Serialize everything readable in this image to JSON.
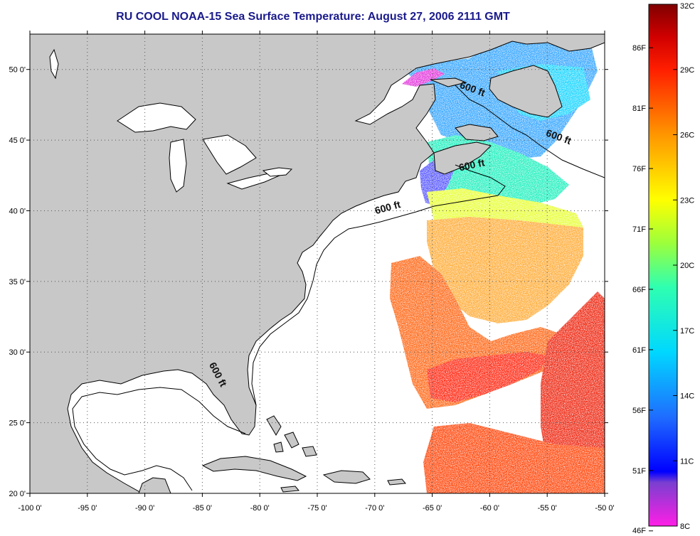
{
  "title": "RU COOL  NOAA-15  Sea Surface Temperature:  August 27, 2006 2111 GMT",
  "map": {
    "lon_range": [
      -100,
      -50
    ],
    "lat_range": [
      20,
      52.5
    ],
    "lon_ticks": [
      {
        "value": -100,
        "label": "-100 0'"
      },
      {
        "value": -95,
        "label": "-95 0'"
      },
      {
        "value": -90,
        "label": "-90 0'"
      },
      {
        "value": -85,
        "label": "-85 0'"
      },
      {
        "value": -80,
        "label": "-80 0'"
      },
      {
        "value": -75,
        "label": "-75 0'"
      },
      {
        "value": -70,
        "label": "-70 0'"
      },
      {
        "value": -65,
        "label": "-65 0'"
      },
      {
        "value": -60,
        "label": "-60 0'"
      },
      {
        "value": -55,
        "label": "-55 0'"
      },
      {
        "value": -50,
        "label": "-50 0'"
      }
    ],
    "lat_ticks": [
      {
        "value": 20,
        "label": "20 0'"
      },
      {
        "value": 25,
        "label": "25 0'"
      },
      {
        "value": 30,
        "label": "30 0'"
      },
      {
        "value": 35,
        "label": "35 0'"
      },
      {
        "value": 40,
        "label": "40 0'"
      },
      {
        "value": 45,
        "label": "45 0'"
      },
      {
        "value": 50,
        "label": "50 0'"
      }
    ],
    "grid": "dotted",
    "contour_labels": [
      {
        "text": "600 ft",
        "lon": -61.6,
        "lat": 48.4,
        "rotate": 20
      },
      {
        "text": "600 ft",
        "lon": -61.5,
        "lat": 43.0,
        "rotate": -12
      },
      {
        "text": "600 ft",
        "lon": -54.1,
        "lat": 45.0,
        "rotate": 20
      },
      {
        "text": "600 ft",
        "lon": -68.8,
        "lat": 40.0,
        "rotate": -15
      },
      {
        "text": "600 ft",
        "lon": -83.9,
        "lat": 28.3,
        "rotate": 62
      }
    ],
    "colors": {
      "land": "#c8c8c8",
      "coast": "#000000",
      "ocean": "#ffffff"
    }
  },
  "colorbar": {
    "range_c": [
      8,
      32
    ],
    "celsius_ticks": [
      {
        "value": 32,
        "label": "32C"
      },
      {
        "value": 29,
        "label": "29C"
      },
      {
        "value": 26,
        "label": "26C"
      },
      {
        "value": 23,
        "label": "23C"
      },
      {
        "value": 20,
        "label": "20C"
      },
      {
        "value": 17,
        "label": "17C"
      },
      {
        "value": 14,
        "label": "14C"
      },
      {
        "value": 11,
        "label": "11C"
      },
      {
        "value": 8,
        "label": "8C"
      }
    ],
    "fahrenheit_ticks": [
      {
        "value": 86,
        "label": "86F"
      },
      {
        "value": 81,
        "label": "81F"
      },
      {
        "value": 76,
        "label": "76F"
      },
      {
        "value": 71,
        "label": "71F"
      },
      {
        "value": 66,
        "label": "66F"
      },
      {
        "value": 61,
        "label": "61F"
      },
      {
        "value": 56,
        "label": "56F"
      },
      {
        "value": 51,
        "label": "51F"
      },
      {
        "value": 46,
        "label": "46F"
      }
    ],
    "stops": [
      {
        "c": 8,
        "color": "#ff1ee6"
      },
      {
        "c": 10,
        "color": "#7a3fd0"
      },
      {
        "c": 10.5,
        "color": "#0000ff"
      },
      {
        "c": 13,
        "color": "#1f6cff"
      },
      {
        "c": 16,
        "color": "#00d8ff"
      },
      {
        "c": 19,
        "color": "#2fffb0"
      },
      {
        "c": 21,
        "color": "#9cff3c"
      },
      {
        "c": 23,
        "color": "#ffff00"
      },
      {
        "c": 26,
        "color": "#ff9600"
      },
      {
        "c": 29,
        "color": "#ff1e00"
      },
      {
        "c": 30.5,
        "color": "#d00000"
      },
      {
        "c": 32,
        "color": "#800000"
      }
    ]
  }
}
